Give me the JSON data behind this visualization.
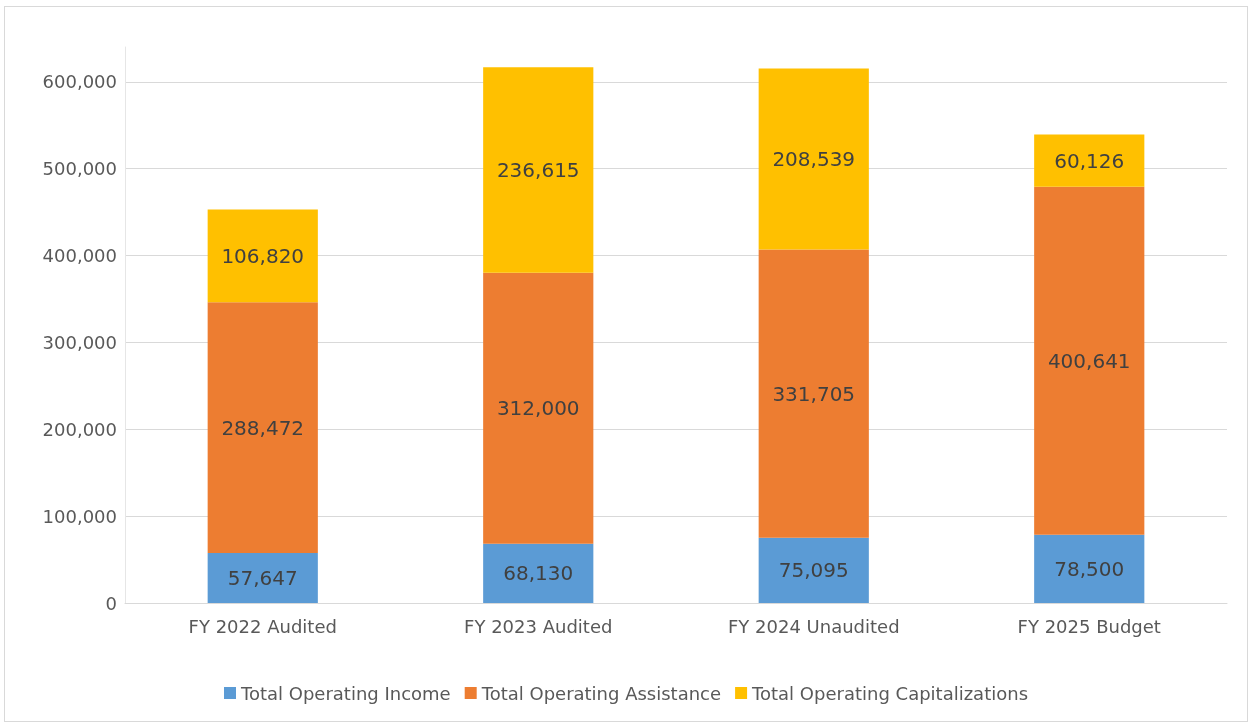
{
  "chart_data": {
    "type": "bar",
    "stacked": true,
    "categories": [
      "FY 2022 Audited",
      "FY 2023 Audited",
      "FY 2024 Unaudited",
      "FY 2025 Budget"
    ],
    "series": [
      {
        "name": "Total Operating Income",
        "color": "#5b9bd5",
        "values": [
          57647,
          68130,
          75095,
          78500
        ],
        "value_labels": [
          "57,647",
          "68,130",
          "75,095",
          "78,500"
        ]
      },
      {
        "name": "Total Operating Assistance",
        "color": "#ed7d31",
        "values": [
          288472,
          312000,
          331705,
          400641
        ],
        "value_labels": [
          "288,472",
          "312,000",
          "331,705",
          "400,641"
        ]
      },
      {
        "name": "Total Operating Capitalizations",
        "color": "#ffc000",
        "values": [
          106820,
          236615,
          208539,
          60126
        ],
        "value_labels": [
          "106,820",
          "236,615",
          "208,539",
          "60,126"
        ]
      }
    ],
    "ylim": [
      0,
      640000
    ],
    "yticks": [
      {
        "value": 0,
        "label": "0"
      },
      {
        "value": 100000,
        "label": "100,000"
      },
      {
        "value": 200000,
        "label": "200,000"
      },
      {
        "value": 300000,
        "label": "300,000"
      },
      {
        "value": 400000,
        "label": "400,000"
      },
      {
        "value": 500000,
        "label": "500,000"
      },
      {
        "value": 600000,
        "label": "600,000"
      }
    ],
    "grid": "y",
    "legend": "bottom"
  }
}
